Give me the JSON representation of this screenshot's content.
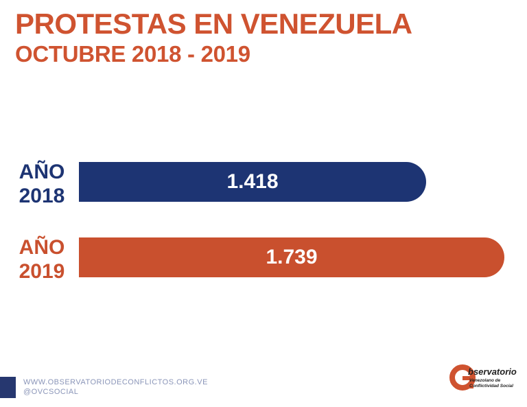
{
  "title": "PROTESTAS EN VENEZUELA",
  "subtitle": "OCTUBRE 2018 - 2019",
  "bars": [
    {
      "label_top": "AÑO",
      "label_bottom": "2018",
      "value_label": "1.418",
      "color": "#1d3473"
    },
    {
      "label_top": "AÑO",
      "label_bottom": "2019",
      "value_label": "1.739",
      "color": "#c9502e"
    }
  ],
  "chart_data": {
    "type": "bar",
    "orientation": "horizontal",
    "title": "PROTESTAS EN VENEZUELA",
    "subtitle": "OCTUBRE 2018 - 2019",
    "categories": [
      "AÑO 2018",
      "AÑO 2019"
    ],
    "values": [
      1418,
      1739
    ],
    "data_labels": [
      "1.418",
      "1.739"
    ],
    "colors": [
      "#1d3473",
      "#c9502e"
    ],
    "xlim": [
      0,
      1739
    ],
    "grid": false,
    "legend": "none"
  },
  "footer": {
    "website": "WWW.OBSERVATORIODECONFLICTOS.ORG.VE",
    "social": "@OVCSOCIAL"
  },
  "logo": {
    "letter": "O",
    "name": "bservatorio",
    "line1": "Venezolano de",
    "line2": "Conflictividad Social"
  }
}
